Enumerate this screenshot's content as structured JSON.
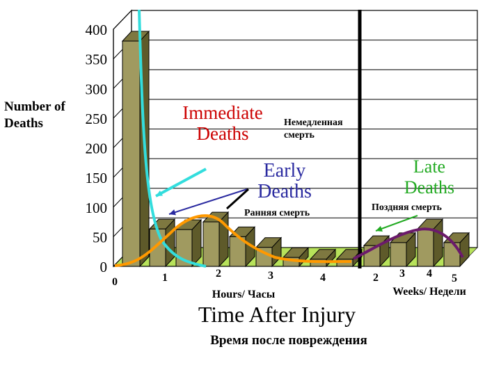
{
  "chart_data": {
    "type": "bar",
    "title": "Time After Injury",
    "subtitle": "Время после повреждения",
    "ylabel": "Number of Deaths",
    "ylim": [
      0,
      400
    ],
    "yticks": [
      0,
      50,
      100,
      150,
      200,
      250,
      300,
      350,
      400
    ],
    "grid": true,
    "hours_axis_label": "Hours/ Часы",
    "weeks_axis_label": "Weeks/ Недели",
    "hour_ticks": [
      "0",
      "1",
      "2",
      "3",
      "4"
    ],
    "week_ticks": [
      "2",
      "3",
      "4",
      "5"
    ],
    "bars": [
      {
        "segment": "immediate",
        "value": 380
      },
      {
        "segment": "hours",
        "value": 63
      },
      {
        "segment": "hours",
        "value": 62
      },
      {
        "segment": "hours",
        "value": 75
      },
      {
        "segment": "hours",
        "value": 50
      },
      {
        "segment": "hours",
        "value": 32
      },
      {
        "segment": "hours",
        "value": 15
      },
      {
        "segment": "hours",
        "value": 12
      },
      {
        "segment": "hours",
        "value": 12
      },
      {
        "segment": "weeks",
        "value": 35
      },
      {
        "segment": "weeks",
        "value": 40
      },
      {
        "segment": "weeks",
        "value": 63
      },
      {
        "segment": "weeks",
        "value": 40
      }
    ],
    "curves": {
      "immediate": {
        "color": "#33dddd"
      },
      "early": {
        "color": "#ff9900"
      },
      "late": {
        "color": "#6b1a6b"
      }
    },
    "annotations": {
      "immediate": {
        "title": "Immediate\nDeaths",
        "subtitle": "Немедленная\nсмерть",
        "color": "#cc0000"
      },
      "early": {
        "title": "Early\nDeaths",
        "subtitle": "Ранняя смерть",
        "color": "#2a2aa0"
      },
      "late": {
        "title": "Late\nDeaths",
        "subtitle": "Поздняя смерть",
        "color": "#22aa22"
      }
    }
  },
  "colors": {
    "bar_front": "#a09a60",
    "bar_top": "#7e7840",
    "floor": "#b7e25a",
    "divider": "#000000"
  }
}
